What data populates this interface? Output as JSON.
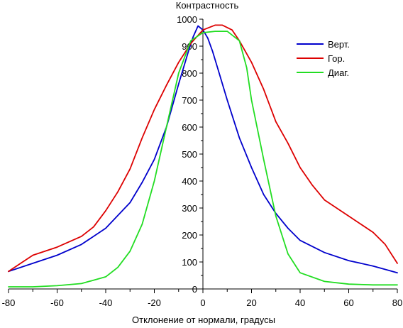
{
  "chart_data": {
    "type": "line",
    "title": "Контрастность",
    "xlabel": "Отклонение от нормали, градусы",
    "ylabel": "",
    "xlim": [
      -80,
      80
    ],
    "ylim": [
      0,
      1000
    ],
    "x_ticks": [
      -80,
      -60,
      -40,
      -20,
      0,
      20,
      40,
      60,
      80
    ],
    "y_ticks": [
      0,
      100,
      200,
      300,
      400,
      500,
      600,
      700,
      800,
      900,
      1000
    ],
    "grid": false,
    "legend_position": "top-right",
    "series": [
      {
        "name": "Верт.",
        "color": "#0000cc",
        "points": [
          [
            -80,
            65
          ],
          [
            -70,
            95
          ],
          [
            -60,
            125
          ],
          [
            -50,
            165
          ],
          [
            -40,
            225
          ],
          [
            -30,
            320
          ],
          [
            -25,
            395
          ],
          [
            -20,
            480
          ],
          [
            -15,
            600
          ],
          [
            -10,
            760
          ],
          [
            -6,
            880
          ],
          [
            -4,
            935
          ],
          [
            -2,
            975
          ],
          [
            0,
            960
          ],
          [
            2,
            930
          ],
          [
            4,
            880
          ],
          [
            6,
            820
          ],
          [
            10,
            700
          ],
          [
            15,
            560
          ],
          [
            20,
            450
          ],
          [
            25,
            350
          ],
          [
            30,
            280
          ],
          [
            35,
            225
          ],
          [
            40,
            180
          ],
          [
            50,
            135
          ],
          [
            60,
            105
          ],
          [
            70,
            85
          ],
          [
            80,
            60
          ]
        ]
      },
      {
        "name": "Гор.",
        "color": "#dd0000",
        "points": [
          [
            -80,
            65
          ],
          [
            -75,
            95
          ],
          [
            -70,
            125
          ],
          [
            -60,
            155
          ],
          [
            -50,
            195
          ],
          [
            -45,
            230
          ],
          [
            -40,
            290
          ],
          [
            -35,
            360
          ],
          [
            -30,
            445
          ],
          [
            -25,
            560
          ],
          [
            -20,
            665
          ],
          [
            -15,
            755
          ],
          [
            -10,
            840
          ],
          [
            -5,
            910
          ],
          [
            0,
            960
          ],
          [
            5,
            978
          ],
          [
            8,
            978
          ],
          [
            12,
            960
          ],
          [
            15,
            920
          ],
          [
            20,
            840
          ],
          [
            25,
            740
          ],
          [
            30,
            620
          ],
          [
            35,
            540
          ],
          [
            40,
            450
          ],
          [
            45,
            385
          ],
          [
            50,
            330
          ],
          [
            60,
            270
          ],
          [
            70,
            210
          ],
          [
            75,
            165
          ],
          [
            80,
            95
          ]
        ]
      },
      {
        "name": "Диаг.",
        "color": "#22dd22",
        "points": [
          [
            -80,
            8
          ],
          [
            -70,
            8
          ],
          [
            -60,
            12
          ],
          [
            -50,
            20
          ],
          [
            -40,
            45
          ],
          [
            -35,
            80
          ],
          [
            -30,
            140
          ],
          [
            -25,
            240
          ],
          [
            -20,
            400
          ],
          [
            -15,
            600
          ],
          [
            -10,
            800
          ],
          [
            -5,
            920
          ],
          [
            0,
            950
          ],
          [
            5,
            955
          ],
          [
            10,
            955
          ],
          [
            15,
            920
          ],
          [
            18,
            820
          ],
          [
            20,
            700
          ],
          [
            25,
            480
          ],
          [
            30,
            270
          ],
          [
            35,
            130
          ],
          [
            40,
            60
          ],
          [
            50,
            28
          ],
          [
            60,
            18
          ],
          [
            70,
            15
          ],
          [
            80,
            15
          ]
        ]
      }
    ]
  }
}
